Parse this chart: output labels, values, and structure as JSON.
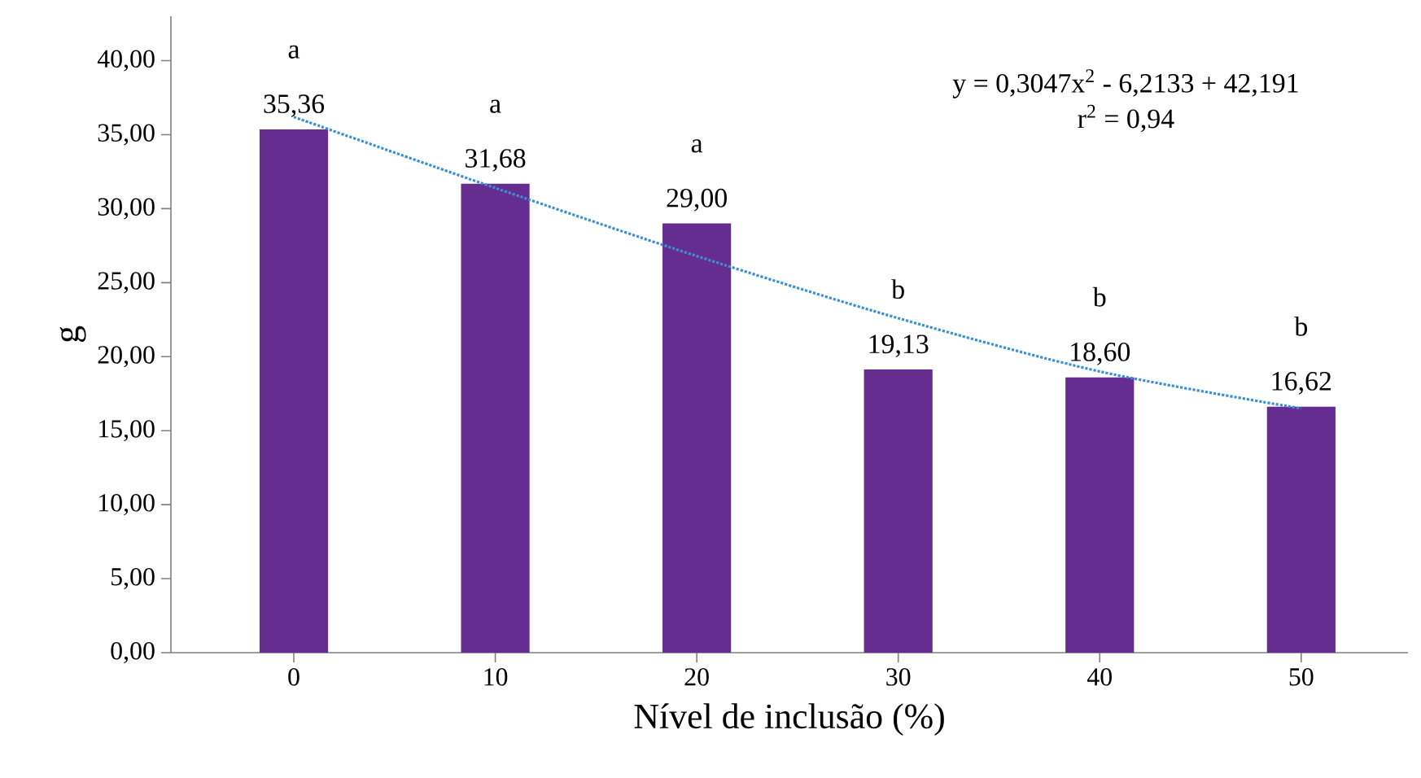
{
  "chart_data": {
    "type": "bar",
    "xlabel": "Nível de inclusão (%)",
    "ylabel": "g",
    "categories": [
      "0",
      "10",
      "20",
      "30",
      "40",
      "50"
    ],
    "series": [
      {
        "color": "#652d8f",
        "values": [
          35.36,
          31.68,
          29.0,
          19.13,
          18.6,
          16.62
        ],
        "value_labels": [
          "35,36",
          "31,68",
          "29,00",
          "19,13",
          "18,60",
          "16,62"
        ]
      },
      {
        "type": "line",
        "color": "#3a8fd9",
        "line_style": "dotted",
        "values": [
          36.2,
          31.4,
          26.8,
          22.6,
          19.0,
          16.5
        ]
      }
    ],
    "ylim": [
      0,
      43
    ],
    "yticks": [
      {
        "value": 0,
        "label": "0,00"
      },
      {
        "value": 5,
        "label": "5,00"
      },
      {
        "value": 10,
        "label": "10,00"
      },
      {
        "value": 15,
        "label": "15,00"
      },
      {
        "value": 20,
        "label": "20,00"
      },
      {
        "value": 25,
        "label": "25,00"
      },
      {
        "value": 30,
        "label": "30,00"
      },
      {
        "value": 35,
        "label": "35,00"
      },
      {
        "value": 40,
        "label": "40,00"
      }
    ],
    "annotations": [
      "a",
      "a",
      "a",
      "b",
      "b",
      "b",
      "y = 0,3047x$^{2}$ - 6,2133 + 42,191",
      "r$^{2}$ = 0,94"
    ]
  }
}
